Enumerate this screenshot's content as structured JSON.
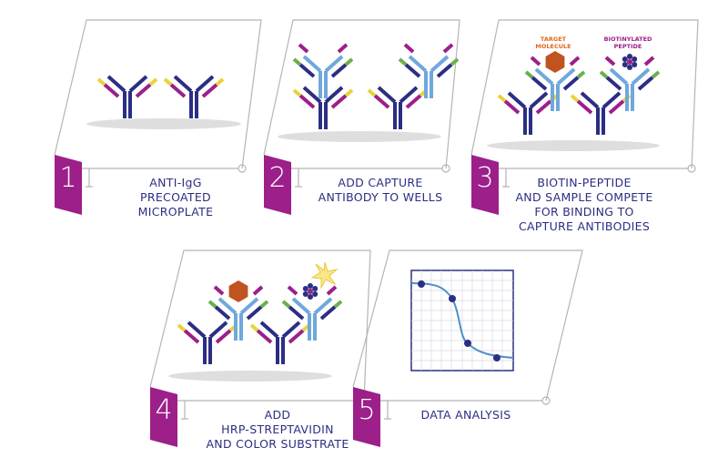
{
  "steps": [
    {
      "number": "1",
      "label": [
        "ANTI-IgG",
        "PRECOATED",
        "MICROPLATE"
      ]
    },
    {
      "number": "2",
      "label": [
        "ADD CAPTURE",
        "ANTIBODY TO WELLS"
      ]
    },
    {
      "number": "3",
      "label": [
        "BIOTIN-PEPTIDE",
        "AND SAMPLE COMPETE",
        "FOR BINDING TO",
        "CAPTURE ANTIBODIES"
      ]
    },
    {
      "number": "4",
      "label": [
        "ADD",
        "HRP-STREPTAVIDIN",
        "AND COLOR SUBSTRATE"
      ]
    },
    {
      "number": "5",
      "label": [
        "DATA ANALYSIS"
      ]
    }
  ],
  "annotations": {
    "target": [
      "TARGET",
      "MOLECULE"
    ],
    "peptide": [
      "BIOTINYLATED",
      "PEPTIDE"
    ]
  }
}
